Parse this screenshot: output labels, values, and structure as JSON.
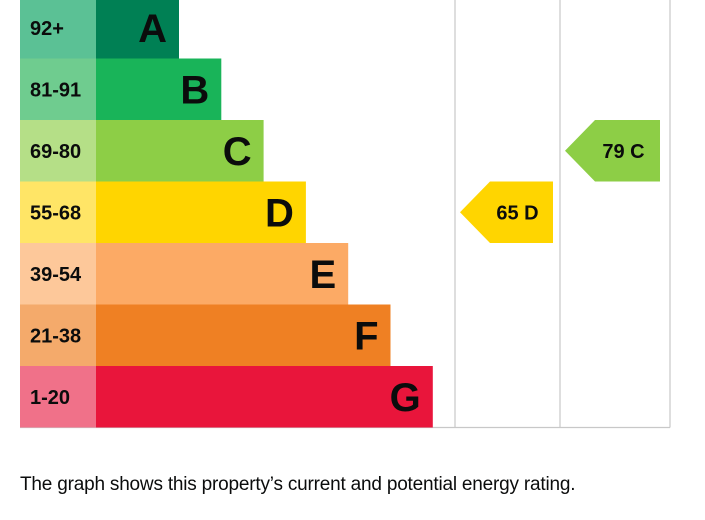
{
  "chart_data": {
    "type": "bar",
    "bands": [
      {
        "range": "92+",
        "letter": "A",
        "color": "#008054",
        "range_bg": "#5bc195"
      },
      {
        "range": "81-91",
        "letter": "B",
        "color": "#19b459",
        "range_bg": "#6fcc8f"
      },
      {
        "range": "69-80",
        "letter": "C",
        "color": "#8dce46",
        "range_bg": "#b5df87"
      },
      {
        "range": "55-68",
        "letter": "D",
        "color": "#ffd500",
        "range_bg": "#ffe566"
      },
      {
        "range": "39-54",
        "letter": "E",
        "color": "#fcaa65",
        "range_bg": "#fdc89a"
      },
      {
        "range": "21-38",
        "letter": "F",
        "color": "#ef8023",
        "range_bg": "#f4aa6b"
      },
      {
        "range": "1-20",
        "letter": "G",
        "color": "#e9153b",
        "range_bg": "#f07189"
      }
    ],
    "current": {
      "value": 65,
      "letter": "D",
      "label": "65 D",
      "color": "#ffd500"
    },
    "potential": {
      "value": 79,
      "letter": "C",
      "label": "79 C",
      "color": "#8dce46"
    }
  },
  "caption": "The graph shows this property’s current and potential energy rating."
}
